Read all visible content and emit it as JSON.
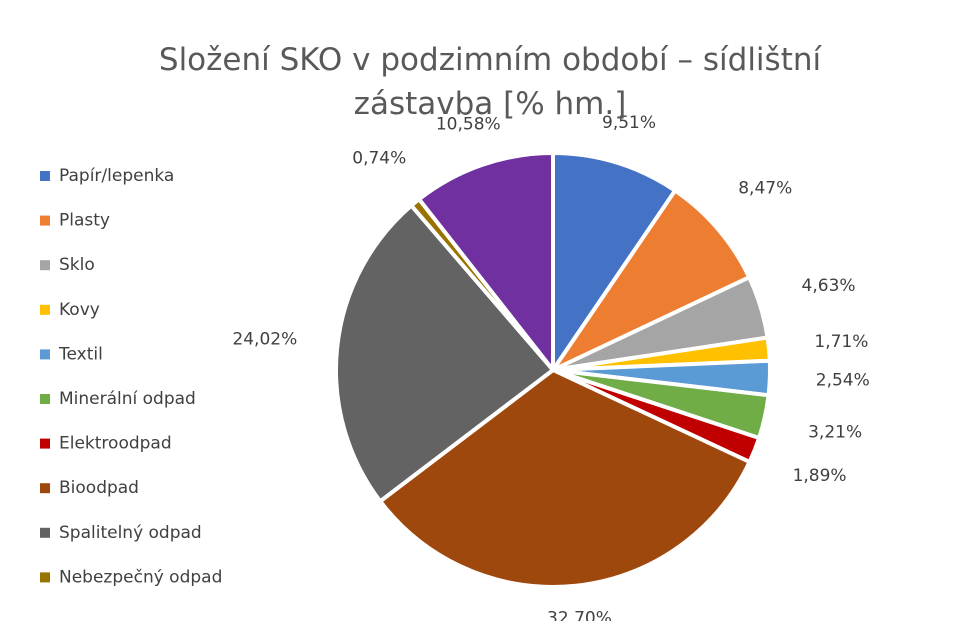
{
  "chart_data": {
    "type": "pie",
    "title": "Složení SKO v podzimním období – sídlištní zástavba  [% hm.]",
    "categories": [
      "Papír/lepenka",
      "Plasty",
      "Sklo",
      "Kovy",
      "Textil",
      "Minerální odpad",
      "Elektroodpad",
      "Bioodpad",
      "Spalitelný odpad",
      "Nebezpečný odpad",
      null
    ],
    "values": [
      9.51,
      8.47,
      4.63,
      1.71,
      2.54,
      3.21,
      1.89,
      32.7,
      24.02,
      0.74,
      10.58
    ],
    "value_labels": [
      "9,51%",
      "8,47%",
      "4,63%",
      "1,71%",
      "2,54%",
      "3,21%",
      "1,89%",
      "32,70%",
      "24,02%",
      "0,74%",
      "10,58%"
    ],
    "colors": [
      "#4472c4",
      "#ed7d31",
      "#a5a5a5",
      "#ffc000",
      "#5b9bd5",
      "#70ad47",
      "#c00000",
      "#9e480e",
      "#636363",
      "#997300",
      "#7030a0"
    ],
    "legend": "left"
  }
}
